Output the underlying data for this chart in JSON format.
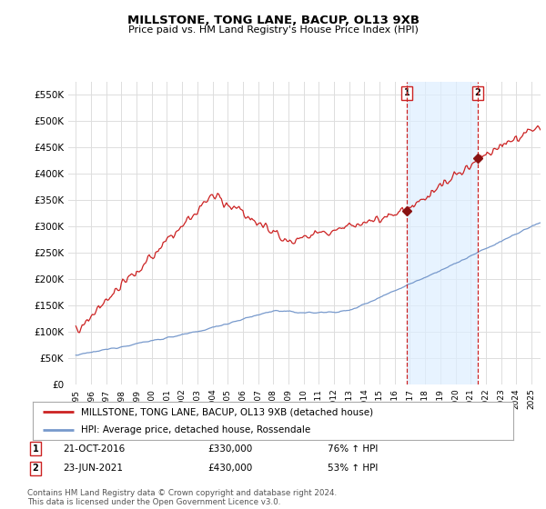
{
  "title": "MILLSTONE, TONG LANE, BACUP, OL13 9XB",
  "subtitle": "Price paid vs. HM Land Registry's House Price Index (HPI)",
  "ylabel_ticks": [
    "£0",
    "£50K",
    "£100K",
    "£150K",
    "£200K",
    "£250K",
    "£300K",
    "£350K",
    "£400K",
    "£450K",
    "£500K",
    "£550K"
  ],
  "ytick_vals": [
    0,
    50000,
    100000,
    150000,
    200000,
    250000,
    300000,
    350000,
    400000,
    450000,
    500000,
    550000
  ],
  "ylim": [
    0,
    575000
  ],
  "xlim_start": 1994.5,
  "xlim_end": 2025.6,
  "line1_color": "#cc2222",
  "line2_color": "#7799cc",
  "shade_color": "#ddeeff",
  "marker1_date": 2016.8,
  "marker1_price": 330000,
  "marker2_date": 2021.47,
  "marker2_price": 430000,
  "legend_label1": "MILLSTONE, TONG LANE, BACUP, OL13 9XB (detached house)",
  "legend_label2": "HPI: Average price, detached house, Rossendale",
  "note1_num": "1",
  "note1_date": "21-OCT-2016",
  "note1_price": "£330,000",
  "note1_hpi": "76% ↑ HPI",
  "note2_num": "2",
  "note2_date": "23-JUN-2021",
  "note2_price": "£430,000",
  "note2_hpi": "53% ↑ HPI",
  "footer": "Contains HM Land Registry data © Crown copyright and database right 2024.\nThis data is licensed under the Open Government Licence v3.0.",
  "bg_color": "#ffffff",
  "grid_color": "#dddddd",
  "vline_color": "#cc2222",
  "vline_style": "--"
}
